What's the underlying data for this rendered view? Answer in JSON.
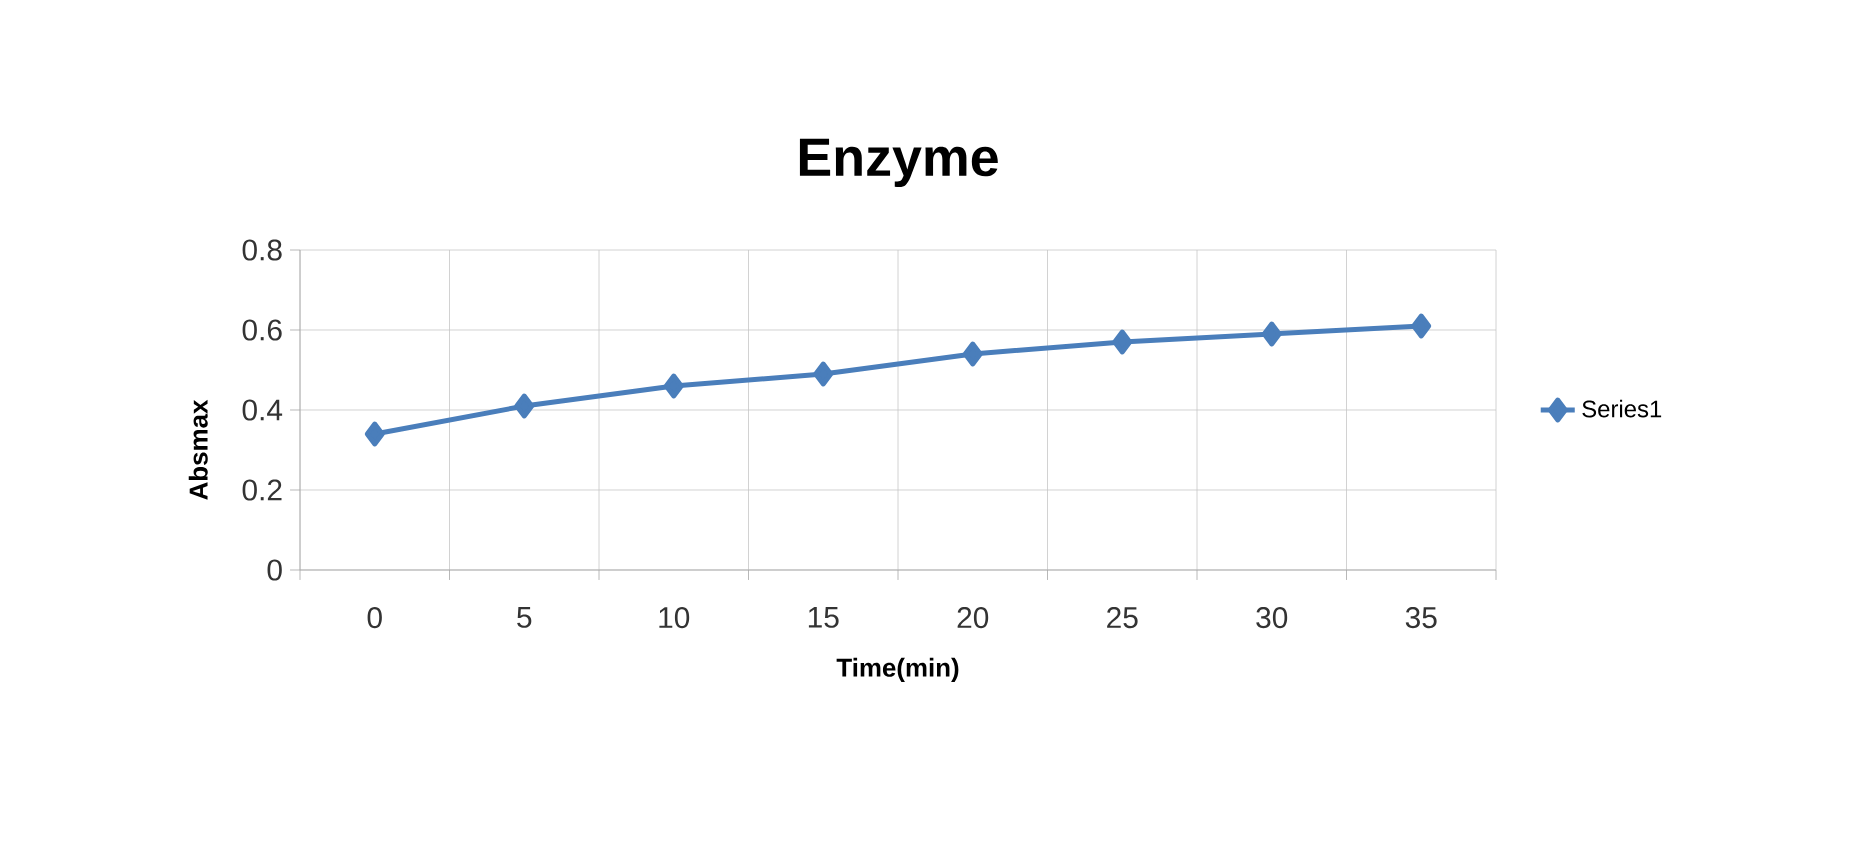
{
  "chart_data": {
    "type": "line",
    "title": "Enzyme",
    "xlabel": "Time(min)",
    "ylabel": "Absmax",
    "categories": [
      "0",
      "5",
      "10",
      "15",
      "20",
      "25",
      "30",
      "35"
    ],
    "series": [
      {
        "name": "Series1",
        "color": "#4a7ebb",
        "values": [
          0.34,
          0.41,
          0.46,
          0.49,
          0.54,
          0.57,
          0.59,
          0.61
        ]
      }
    ],
    "ylim": [
      0,
      0.8
    ],
    "yticks": [
      0,
      0.2,
      0.4,
      0.6,
      0.8
    ],
    "grid": true,
    "legend": "right",
    "marker": "diamond",
    "line_style": "solid"
  }
}
